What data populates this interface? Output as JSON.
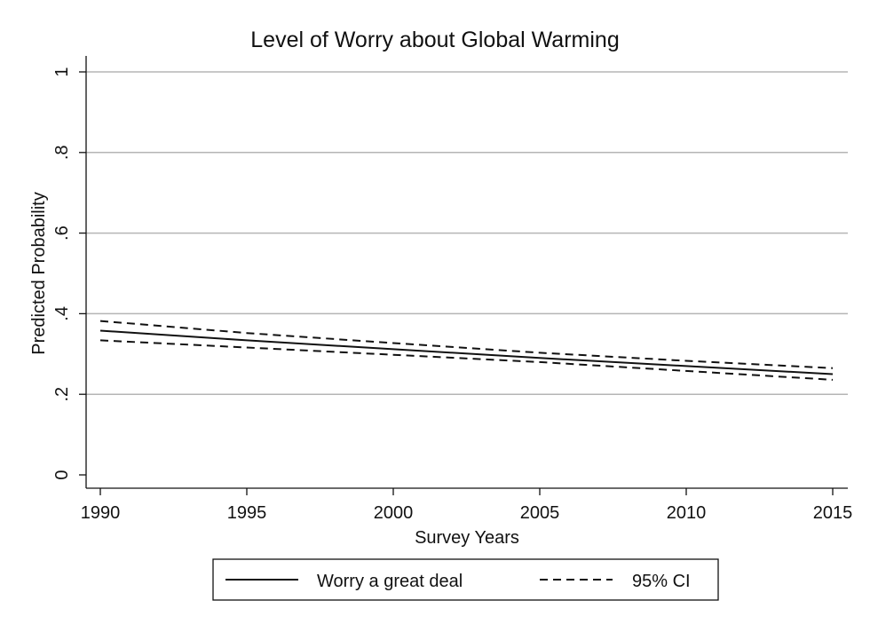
{
  "chart_data": {
    "type": "line",
    "title": "Level of Worry about Global Warming",
    "xlabel": "Survey Years",
    "ylabel": "Predicted Probability",
    "xlim": [
      1990,
      2015
    ],
    "ylim": [
      0,
      1
    ],
    "x_ticks": [
      "1990",
      "1995",
      "2000",
      "2005",
      "2010",
      "2015"
    ],
    "y_ticks": [
      "0",
      ".2",
      ".4",
      ".6",
      ".8",
      "1"
    ],
    "grid": true,
    "legend_position": "bottom",
    "legend": {
      "main": "Worry a great deal",
      "ci": "95% CI"
    },
    "x": [
      1990,
      1995,
      2000,
      2005,
      2010,
      2015
    ],
    "series": [
      {
        "name": "Worry a great deal",
        "style": "solid",
        "values": [
          0.358,
          0.334,
          0.312,
          0.29,
          0.27,
          0.25
        ]
      },
      {
        "name": "95% CI",
        "style": "dashed",
        "values": [
          0.382,
          0.352,
          0.327,
          0.303,
          0.283,
          0.265
        ]
      },
      {
        "name": "95% CI",
        "style": "dashed",
        "values": [
          0.334,
          0.316,
          0.298,
          0.28,
          0.258,
          0.236
        ]
      }
    ]
  }
}
